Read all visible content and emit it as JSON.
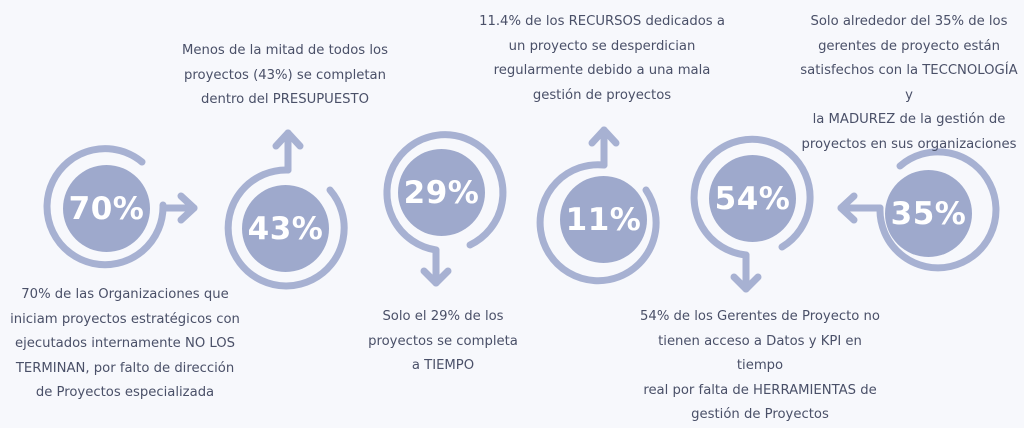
{
  "colors": {
    "background": "#f7f8fc",
    "circle_fill": "#9ea9cc",
    "ring_stroke": "#a7b1d2",
    "text": "#4a5068"
  },
  "stats": [
    {
      "value": "70%",
      "caption": "70% de las Organizaciones que\niniciam proyectos estratégicos con\nejecutados internamente NO LOS\nTERMINAN, por falto de dirección\nde Proyectos especializada"
    },
    {
      "value": "43%",
      "caption": "Menos de la mitad de todos los\nproyectos (43%) se completan\ndentro del PRESUPUESTO"
    },
    {
      "value": "29%",
      "caption": "Solo el 29% de los\nproyectos se completa\na TIEMPO"
    },
    {
      "value": "11%",
      "caption": "11.4% de los RECURSOS dedicados a\nun proyecto se desperdician\nregularmente debido a una mala\ngestión de proyectos"
    },
    {
      "value": "54%",
      "caption": "54% de los Gerentes de Proyecto no\ntienen acceso a Datos y KPI en tiempo\nreal por falta de HERRAMIENTAS de\ngestión de Proyectos"
    },
    {
      "value": "35%",
      "caption": "Solo alrededor del 35% de los\ngerentes de proyecto están\nsatisfechos con la TECCNOLOGÍA y\nla MADUREZ de la gestión de\nproyectos en sus organizaciones"
    }
  ]
}
